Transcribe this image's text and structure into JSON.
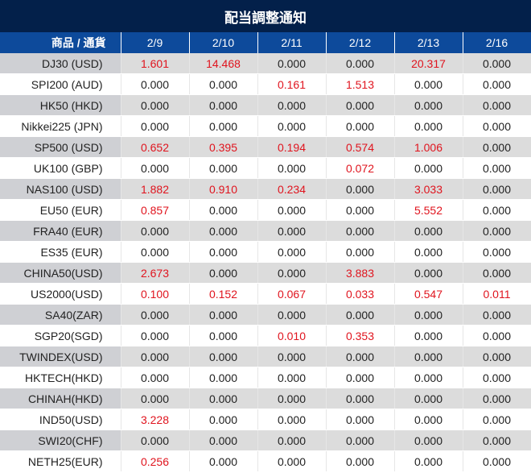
{
  "title": "配当調整通知",
  "header": {
    "product": "商品 / 通貨",
    "dates": [
      "2/9",
      "2/10",
      "2/11",
      "2/12",
      "2/13",
      "2/16"
    ]
  },
  "colors": {
    "title_bg": "#03204a",
    "header_bg": "#0d4a9b",
    "positive": "#e0141e"
  },
  "rows": [
    {
      "name": "DJ30 (USD)",
      "values": [
        "1.601",
        "14.468",
        "0.000",
        "0.000",
        "20.317",
        "0.000"
      ]
    },
    {
      "name": "SPI200 (AUD)",
      "values": [
        "0.000",
        "0.000",
        "0.161",
        "1.513",
        "0.000",
        "0.000"
      ]
    },
    {
      "name": "HK50 (HKD)",
      "values": [
        "0.000",
        "0.000",
        "0.000",
        "0.000",
        "0.000",
        "0.000"
      ]
    },
    {
      "name": "Nikkei225 (JPN)",
      "values": [
        "0.000",
        "0.000",
        "0.000",
        "0.000",
        "0.000",
        "0.000"
      ]
    },
    {
      "name": "SP500 (USD)",
      "values": [
        "0.652",
        "0.395",
        "0.194",
        "0.574",
        "1.006",
        "0.000"
      ]
    },
    {
      "name": "UK100 (GBP)",
      "values": [
        "0.000",
        "0.000",
        "0.000",
        "0.072",
        "0.000",
        "0.000"
      ]
    },
    {
      "name": "NAS100 (USD)",
      "values": [
        "1.882",
        "0.910",
        "0.234",
        "0.000",
        "3.033",
        "0.000"
      ]
    },
    {
      "name": "EU50 (EUR)",
      "values": [
        "0.857",
        "0.000",
        "0.000",
        "0.000",
        "5.552",
        "0.000"
      ]
    },
    {
      "name": "FRA40 (EUR)",
      "values": [
        "0.000",
        "0.000",
        "0.000",
        "0.000",
        "0.000",
        "0.000"
      ]
    },
    {
      "name": "ES35 (EUR)",
      "values": [
        "0.000",
        "0.000",
        "0.000",
        "0.000",
        "0.000",
        "0.000"
      ]
    },
    {
      "name": "CHINA50(USD)",
      "values": [
        "2.673",
        "0.000",
        "0.000",
        "3.883",
        "0.000",
        "0.000"
      ]
    },
    {
      "name": "US2000(USD)",
      "values": [
        "0.100",
        "0.152",
        "0.067",
        "0.033",
        "0.547",
        "0.011"
      ]
    },
    {
      "name": "SA40(ZAR)",
      "values": [
        "0.000",
        "0.000",
        "0.000",
        "0.000",
        "0.000",
        "0.000"
      ]
    },
    {
      "name": "SGP20(SGD)",
      "values": [
        "0.000",
        "0.000",
        "0.010",
        "0.353",
        "0.000",
        "0.000"
      ]
    },
    {
      "name": "TWINDEX(USD)",
      "values": [
        "0.000",
        "0.000",
        "0.000",
        "0.000",
        "0.000",
        "0.000"
      ]
    },
    {
      "name": "HKTECH(HKD)",
      "values": [
        "0.000",
        "0.000",
        "0.000",
        "0.000",
        "0.000",
        "0.000"
      ]
    },
    {
      "name": "CHINAH(HKD)",
      "values": [
        "0.000",
        "0.000",
        "0.000",
        "0.000",
        "0.000",
        "0.000"
      ]
    },
    {
      "name": "IND50(USD)",
      "values": [
        "3.228",
        "0.000",
        "0.000",
        "0.000",
        "0.000",
        "0.000"
      ]
    },
    {
      "name": "SWI20(CHF)",
      "values": [
        "0.000",
        "0.000",
        "0.000",
        "0.000",
        "0.000",
        "0.000"
      ]
    },
    {
      "name": "NETH25(EUR)",
      "values": [
        "0.256",
        "0.000",
        "0.000",
        "0.000",
        "0.000",
        "0.000"
      ]
    }
  ]
}
